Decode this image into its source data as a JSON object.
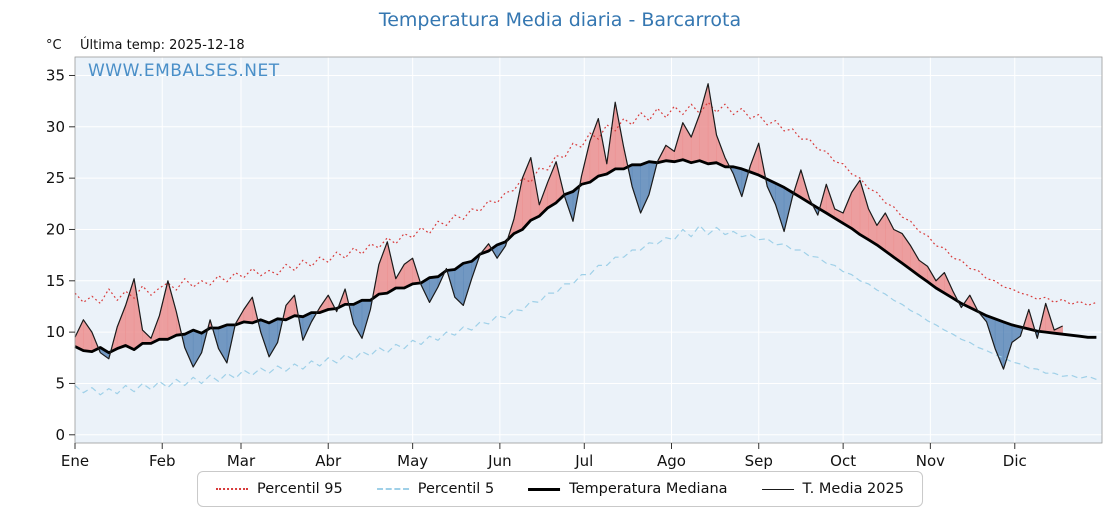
{
  "title": "Temperatura Media diaria - Barcarrota",
  "header": {
    "unit_label": "°C",
    "last_temp": "Última temp: 2025-12-18"
  },
  "watermark": "WWW.EMBALSES.NET",
  "legend": [
    {
      "label": "Percentil 95",
      "color": "#d83a3a",
      "dash": "dotted",
      "thickness": 2
    },
    {
      "label": "Percentil 5",
      "color": "#9fd0e8",
      "dash": "dashed",
      "thickness": 2
    },
    {
      "label": "Temperatura Mediana",
      "color": "#000000",
      "dash": "solid",
      "thickness": 3
    },
    {
      "label": "T. Media 2025",
      "color": "#1a1a1a",
      "dash": "solid",
      "thickness": 1
    }
  ],
  "chart_data": {
    "type": "line",
    "title": "Temperatura Media diaria - Barcarrota",
    "ylabel": "°C",
    "yticks": [
      0,
      5,
      10,
      15,
      20,
      25,
      30,
      35
    ],
    "ylim": [
      -0.8,
      36.8
    ],
    "days_in_year": 365,
    "x_step_days": 3,
    "month_labels": [
      "Ene",
      "Feb",
      "Mar",
      "Abr",
      "May",
      "Jun",
      "Jul",
      "Ago",
      "Sep",
      "Oct",
      "Nov",
      "Dic"
    ],
    "month_start_days": [
      0,
      31,
      59,
      90,
      120,
      151,
      181,
      212,
      243,
      273,
      304,
      334
    ],
    "plot_bg": "#ebf2f9",
    "grid_color": "#ffffff",
    "fills": {
      "between": [
        "T. Media 2025",
        "Temperatura Mediana"
      ],
      "above_color": "#ec8f8f",
      "below_color": "#5d88b8"
    },
    "series": [
      {
        "name": "Percentil 95",
        "color": "#d83a3a",
        "dash": "dotted",
        "width": 1.2,
        "values": [
          13.8,
          12.9,
          13.5,
          12.8,
          14.2,
          13.1,
          14.0,
          13.3,
          14.5,
          13.6,
          14.3,
          14.8,
          14.1,
          15.2,
          14.4,
          15.0,
          14.6,
          15.5,
          14.9,
          15.8,
          15.3,
          16.2,
          15.5,
          16.0,
          15.6,
          16.6,
          16.0,
          17.0,
          16.4,
          17.3,
          16.8,
          17.8,
          17.2,
          18.2,
          17.6,
          18.6,
          18.2,
          19.2,
          18.6,
          19.6,
          19.2,
          20.2,
          19.6,
          20.8,
          20.4,
          21.4,
          21.0,
          22.0,
          21.8,
          22.8,
          22.6,
          23.6,
          23.8,
          25.0,
          24.6,
          26.0,
          25.8,
          27.2,
          27.0,
          28.4,
          28.0,
          29.4,
          28.8,
          30.2,
          29.6,
          30.8,
          30.2,
          31.4,
          30.6,
          31.8,
          30.9,
          32.0,
          31.2,
          32.2,
          31.3,
          32.4,
          31.4,
          32.2,
          31.2,
          31.8,
          30.8,
          31.2,
          30.2,
          30.6,
          29.6,
          29.8,
          28.8,
          28.8,
          27.8,
          27.6,
          26.6,
          26.4,
          25.4,
          25.0,
          24.0,
          23.6,
          22.6,
          22.2,
          21.2,
          20.8,
          19.8,
          19.4,
          18.4,
          18.2,
          17.2,
          17.0,
          16.2,
          16.0,
          15.2,
          15.0,
          14.4,
          14.2,
          13.8,
          13.6,
          13.2,
          13.4,
          12.9,
          13.2,
          12.7,
          13.0,
          12.6,
          12.9
        ]
      },
      {
        "name": "Percentil 5",
        "color": "#9fd0e8",
        "dash": "dashed",
        "width": 1.2,
        "values": [
          4.8,
          4.1,
          4.6,
          3.9,
          4.5,
          4.0,
          4.8,
          4.2,
          5.0,
          4.4,
          5.2,
          4.6,
          5.4,
          4.8,
          5.6,
          5.0,
          5.8,
          5.2,
          6.0,
          5.5,
          6.3,
          5.8,
          6.5,
          6.0,
          6.7,
          6.2,
          6.9,
          6.4,
          7.2,
          6.7,
          7.5,
          7.0,
          7.8,
          7.3,
          8.1,
          7.7,
          8.5,
          8.0,
          8.8,
          8.4,
          9.2,
          8.8,
          9.6,
          9.2,
          10.0,
          9.7,
          10.5,
          10.2,
          11.0,
          10.8,
          11.6,
          11.4,
          12.2,
          12.1,
          13.0,
          12.9,
          13.8,
          13.8,
          14.7,
          14.7,
          15.6,
          15.6,
          16.5,
          16.5,
          17.3,
          17.3,
          18.0,
          18.0,
          18.7,
          18.6,
          19.2,
          19.0,
          20.0,
          19.3,
          20.4,
          19.5,
          20.2,
          19.5,
          19.8,
          19.3,
          19.5,
          19.0,
          19.1,
          18.5,
          18.6,
          18.0,
          18.0,
          17.4,
          17.3,
          16.7,
          16.5,
          15.9,
          15.6,
          15.0,
          14.7,
          14.1,
          13.7,
          13.1,
          12.7,
          12.1,
          11.7,
          11.1,
          10.7,
          10.2,
          9.8,
          9.3,
          9.0,
          8.5,
          8.2,
          7.8,
          7.5,
          7.1,
          6.9,
          6.5,
          6.4,
          6.0,
          6.0,
          5.7,
          5.8,
          5.5,
          5.7,
          5.4
        ]
      },
      {
        "name": "Temperatura Mediana",
        "color": "#000000",
        "dash": "solid",
        "width": 2.8,
        "values": [
          8.6,
          8.2,
          8.1,
          8.5,
          8.0,
          8.4,
          8.7,
          8.3,
          8.9,
          8.9,
          9.3,
          9.3,
          9.7,
          9.8,
          10.2,
          9.9,
          10.4,
          10.4,
          10.7,
          10.7,
          11.0,
          10.9,
          11.2,
          10.9,
          11.3,
          11.2,
          11.6,
          11.5,
          11.9,
          11.9,
          12.2,
          12.3,
          12.7,
          12.7,
          13.1,
          13.1,
          13.7,
          13.8,
          14.3,
          14.3,
          14.7,
          14.8,
          15.3,
          15.4,
          16.0,
          16.1,
          16.7,
          16.9,
          17.6,
          17.9,
          18.5,
          18.8,
          19.6,
          20.0,
          20.9,
          21.3,
          22.1,
          22.6,
          23.4,
          23.7,
          24.4,
          24.6,
          25.2,
          25.4,
          25.9,
          25.9,
          26.3,
          26.3,
          26.6,
          26.5,
          26.7,
          26.6,
          26.8,
          26.5,
          26.7,
          26.4,
          26.5,
          26.1,
          26.1,
          25.9,
          25.6,
          25.3,
          24.9,
          24.5,
          24.1,
          23.6,
          23.1,
          22.6,
          22.1,
          21.6,
          21.1,
          20.6,
          20.1,
          19.5,
          19.0,
          18.5,
          17.9,
          17.3,
          16.7,
          16.1,
          15.5,
          14.9,
          14.3,
          13.8,
          13.3,
          12.8,
          12.4,
          12.0,
          11.6,
          11.3,
          11.0,
          10.7,
          10.5,
          10.3,
          10.1,
          10.0,
          9.9,
          9.8,
          9.7,
          9.6,
          9.5,
          9.5
        ]
      },
      {
        "name": "T. Media 2025",
        "color": "#1a1a1a",
        "dash": "solid",
        "width": 1.2,
        "values": [
          9.5,
          11.2,
          10.0,
          8.0,
          7.4,
          10.5,
          12.6,
          15.2,
          10.2,
          9.4,
          11.6,
          15.0,
          12.0,
          8.5,
          6.6,
          8.0,
          11.2,
          8.4,
          7.0,
          10.8,
          12.2,
          13.4,
          10.0,
          7.6,
          9.0,
          12.6,
          13.6,
          9.2,
          11.0,
          12.4,
          13.6,
          12.0,
          14.2,
          10.8,
          9.4,
          12.2,
          16.6,
          18.8,
          15.2,
          16.6,
          17.2,
          14.6,
          12.9,
          14.4,
          16.2,
          13.4,
          12.6,
          15.2,
          17.6,
          18.6,
          17.2,
          18.4,
          21.0,
          25.0,
          27.0,
          22.4,
          24.6,
          26.6,
          23.2,
          20.8,
          25.2,
          28.6,
          30.8,
          26.4,
          32.4,
          28.0,
          24.2,
          21.6,
          23.4,
          26.6,
          28.2,
          27.6,
          30.4,
          29.0,
          31.2,
          34.2,
          29.2,
          27.0,
          25.4,
          23.2,
          26.2,
          28.4,
          24.2,
          22.4,
          19.8,
          23.2,
          25.8,
          23.0,
          21.4,
          24.4,
          22.0,
          21.6,
          23.6,
          24.8,
          22.0,
          20.4,
          21.6,
          20.0,
          19.6,
          18.4,
          17.0,
          16.4,
          15.0,
          15.8,
          14.0,
          12.4,
          13.6,
          12.0,
          11.0,
          8.4,
          6.4,
          9.0,
          9.6,
          12.2,
          9.4,
          12.8,
          10.2,
          10.6
        ]
      }
    ]
  }
}
